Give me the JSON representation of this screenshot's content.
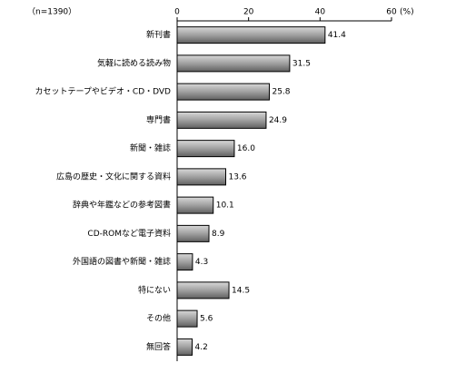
{
  "chart_data": {
    "type": "barh",
    "note": "（n=1390）",
    "unit": "(%)",
    "categories": [
      "新刊書",
      "気軽に読める読み物",
      "カセットテープやビデオ・CD・DVD",
      "専門書",
      "新聞・雑誌",
      "広島の歴史・文化に関する資料",
      "辞典や年鑑などの参考図書",
      "CD-ROMなど電子資料",
      "外国語の図書や新聞・雑誌",
      "特にない",
      "その他",
      "無回答"
    ],
    "values": [
      41.4,
      31.5,
      25.8,
      24.9,
      16.0,
      13.6,
      10.1,
      8.9,
      4.3,
      14.5,
      5.6,
      4.2
    ],
    "value_labels": [
      "41.4",
      "31.5",
      "25.8",
      "24.9",
      "16.0",
      "13.6",
      "10.1",
      "8.9",
      "4.3",
      "14.5",
      "5.6",
      "4.2"
    ],
    "color": "#8c8c8c",
    "xlim": [
      0,
      60
    ],
    "xticks": [
      0,
      20,
      40,
      60
    ]
  }
}
